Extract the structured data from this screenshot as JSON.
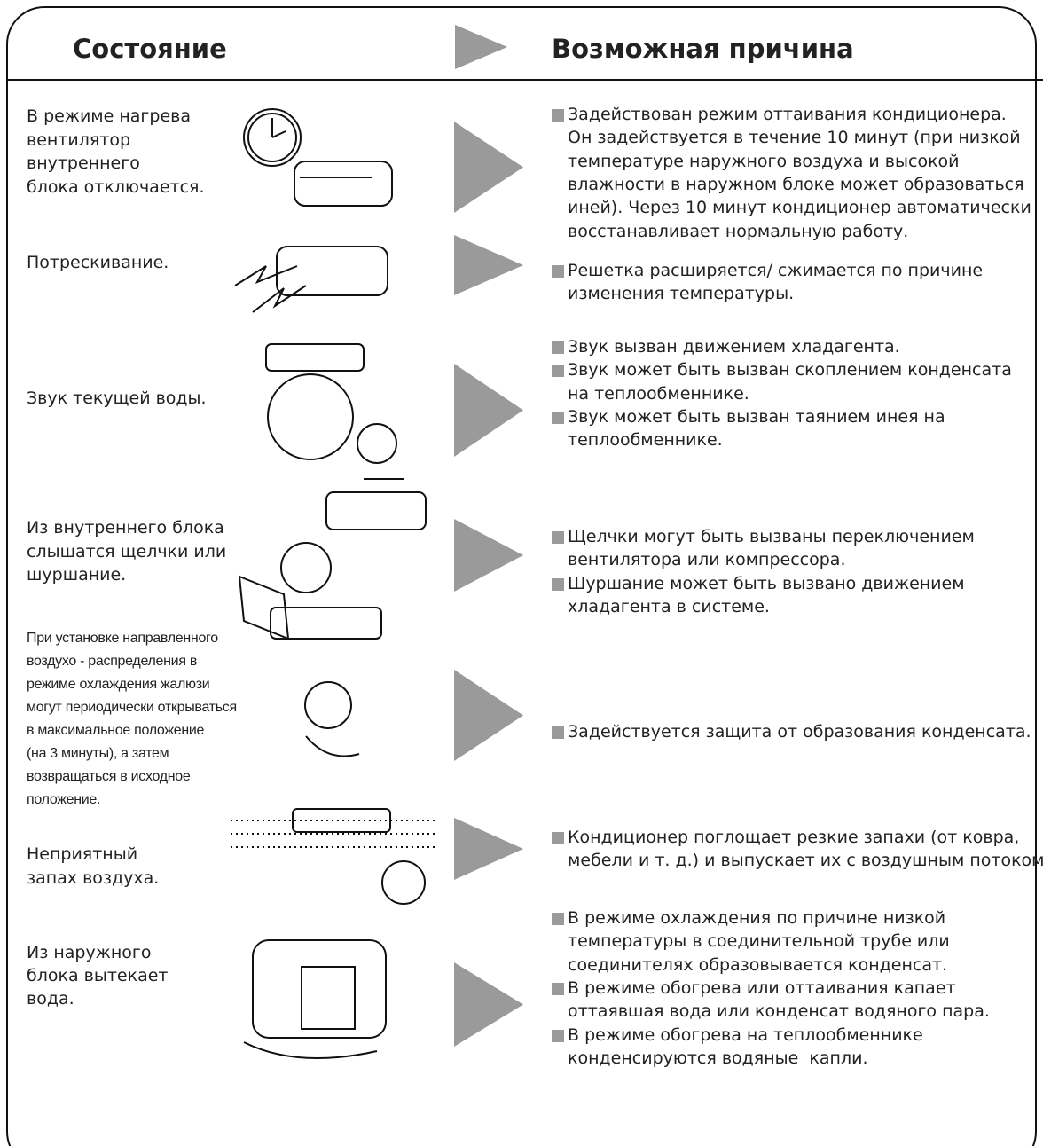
{
  "header": {
    "state": "Состояние",
    "cause": "Возможная причина"
  },
  "rows": [
    {
      "condition": [
        "В режиме нагрева",
        "вентилятор",
        "внутреннего",
        "блока отключается."
      ],
      "causes": [
        [
          "Задействован режим оттаивания кондиционера.",
          "Он задействуется в течение 10 минут (при низкой",
          "температуре наружного воздуха и высокой",
          "влажности в наружном блоке может образоваться",
          "иней). Через 10 минут кондиционер автоматически",
          "восстанавливает нормальную работу."
        ]
      ]
    },
    {
      "condition": [
        "Потрескивание."
      ],
      "causes": [
        [
          "Решетка расширяется/ сжимается по причине",
          "изменения температуры."
        ]
      ]
    },
    {
      "condition": [
        "Звук текущей воды."
      ],
      "causes": [
        [
          "Звук вызван движением хладагента."
        ],
        [
          "Звук может быть вызван скоплением конденсата",
          "на теплообменнике."
        ],
        [
          "Звук может быть вызван таянием инея на",
          "теплообменнике."
        ]
      ]
    },
    {
      "condition": [
        "Из внутреннего блока",
        "слышатся щелчки или",
        "шуршание."
      ],
      "causes": [
        [
          "Щелчки могут быть вызваны переключением",
          "вентилятора или компрессора."
        ],
        [
          "Шуршание может быть вызвано движением",
          "хладагента в системе."
        ]
      ]
    },
    {
      "condition": [
        "При установке направленного",
        "воздухо - распределения в",
        "режиме охлаждения жалюзи",
        "могут периодически открываться",
        "в максимальное положение",
        "(на 3 минуты), а затем",
        "возвращаться в исходное",
        "положение."
      ],
      "causes": [
        [
          "Задействуется защита от образования конденсата."
        ]
      ]
    },
    {
      "condition": [
        "Неприятный",
        "запах воздуха."
      ],
      "causes": [
        [
          "Кондиционер поглощает резкие запахи (от ковра,",
          "мебели и т. д.) и выпускает их с воздушным потоком."
        ]
      ]
    },
    {
      "condition": [
        "Из наружного",
        "блока вытекает",
        "вода."
      ],
      "causes": [
        [
          "В режиме охлаждения по причине низкой",
          "температуры в соединительной трубе или",
          "соединителях образовывается конденсат."
        ],
        [
          "В режиме обогрева или оттаивания капает",
          "оттаявшая вода или конденсат водяного пара."
        ],
        [
          "В режиме обогрева на теплообменнике",
          "конденсируются водяные  капли."
        ]
      ]
    }
  ]
}
